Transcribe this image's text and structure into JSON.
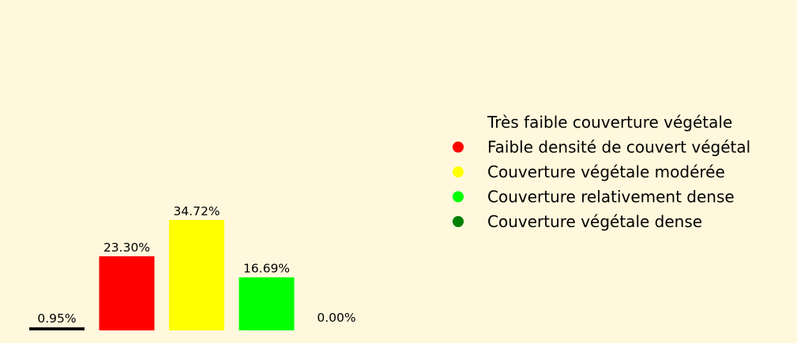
{
  "chart_data": {
    "type": "bar",
    "title": "",
    "xlabel": "",
    "ylabel": "",
    "categories": [
      "Très faible couverture végétale",
      "Faible densité de couvert végétal",
      "Couverture végétale modérée",
      "Couverture relativement dense",
      "Couverture végétale dense"
    ],
    "values": [
      0.95,
      23.3,
      34.72,
      16.69,
      0.0
    ],
    "value_labels": [
      "0.95%",
      "23.30%",
      "34.72%",
      "16.69%",
      "0.00%"
    ],
    "colors": [
      "#000000",
      "#ff0000",
      "#ffff00",
      "#00ff00",
      "#008000"
    ],
    "ylim": [
      0,
      100
    ],
    "grid": false,
    "axes_visible": false,
    "legend": {
      "placement": "right",
      "entries": [
        {
          "label": "Très faible couverture végétale",
          "color": "#000000",
          "marker_visible": false
        },
        {
          "label": "Faible densité de couvert végétal",
          "color": "#ff0000",
          "marker_visible": true
        },
        {
          "label": "Couverture végétale modérée",
          "color": "#ffff00",
          "marker_visible": true
        },
        {
          "label": "Couverture relativement dense",
          "color": "#00ff00",
          "marker_visible": true
        },
        {
          "label": "Couverture végétale dense",
          "color": "#008000",
          "marker_visible": true
        }
      ]
    }
  },
  "background_color": "#fff8dc"
}
